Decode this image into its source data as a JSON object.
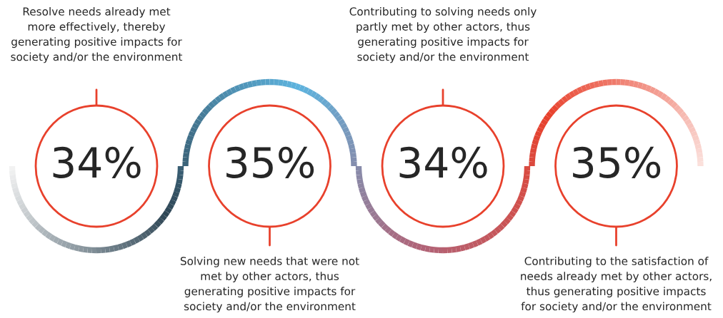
{
  "chart_data": {
    "type": "other",
    "categories": [
      "Resolve needs already met\nmore effectively, thereby\ngenerating positive impacts for\nsociety and/or the environment",
      "Solving new needs that were not\nmet by other actors, thus\ngenerating positive impacts for\nsociety and/or the environment",
      "Contributing to solving needs only\npartly met by other actors, thus\ngenerating positive impacts for\nsociety and/or the environment",
      "Contributing to the satisfaction of\nneeds already met by other actors,\nthus generating positive impacts\nfor society and/or the environment"
    ],
    "values": [
      34,
      35,
      34,
      35
    ],
    "value_labels": [
      "34%",
      "35%",
      "34%",
      "35%"
    ],
    "color": "#e8412c"
  }
}
